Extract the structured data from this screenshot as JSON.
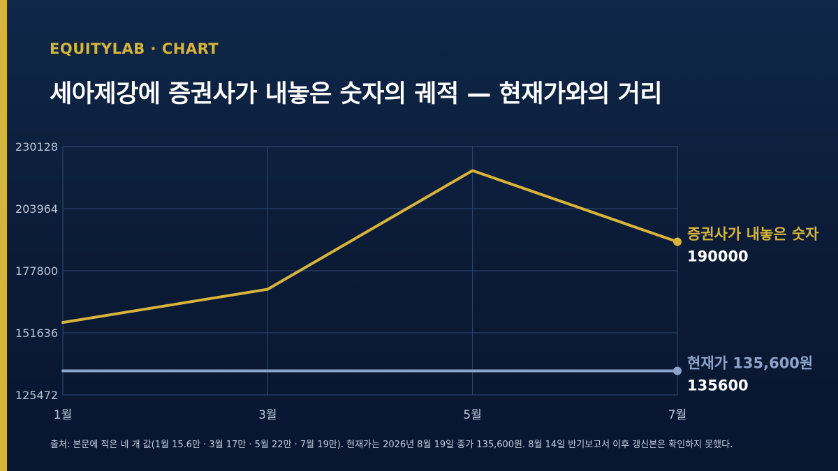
{
  "header": {
    "kicker": "EQUITYLAB · CHART",
    "title": "세아제강에 증권사가 내놓은 숫자의 궤적 — 현재가와의 거리"
  },
  "chart_data": {
    "type": "line",
    "x": [
      "1월",
      "3월",
      "5월",
      "7월"
    ],
    "ylim": [
      125472,
      230128
    ],
    "yticks": [
      "230128",
      "203964",
      "177800",
      "151636",
      "125472"
    ],
    "grid": true,
    "series": [
      {
        "name": "증권사가 내놓은 숫자",
        "values": [
          156000,
          170000,
          220000,
          190000
        ],
        "end_label": "190000",
        "color": "#d8b43b"
      },
      {
        "name": "현재가 135,600원",
        "values": [
          135600,
          135600,
          135600,
          135600
        ],
        "end_label": "135600",
        "color": "#8ea3c9"
      }
    ]
  },
  "footer": {
    "source": "출처: 본문에 적은 네 개 값(1월 15.6만 · 3월 17만 · 5월 22만 · 7월 19만). 현재가는 2026년 8월 19일 종가 135,600원. 8월 14일 반기보고서 이후 갱신본은 확인하지 못했다."
  }
}
